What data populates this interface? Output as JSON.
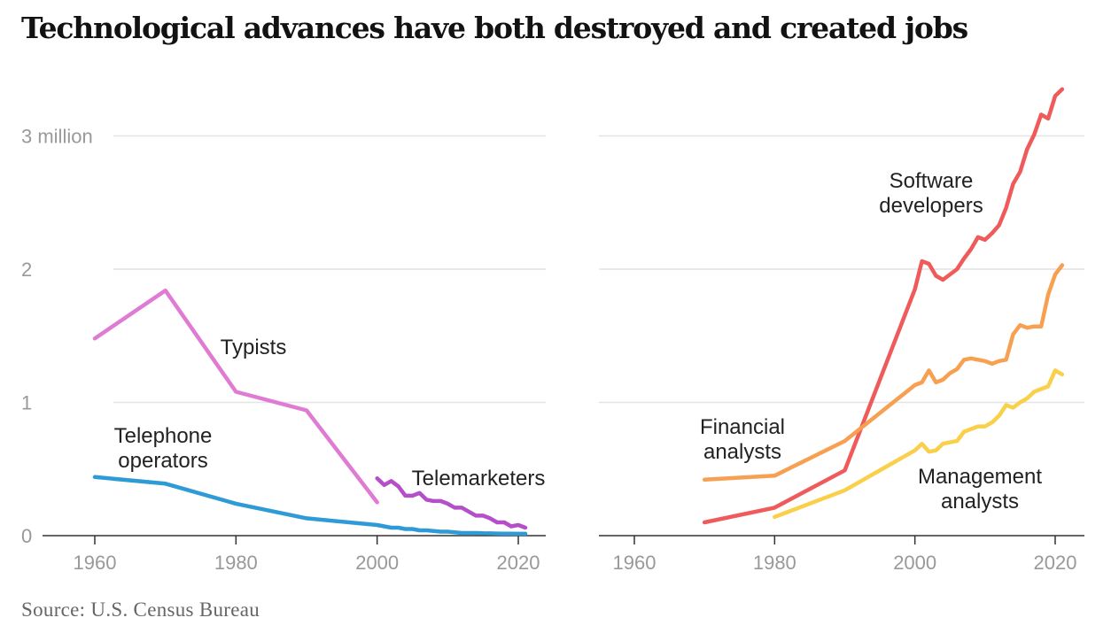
{
  "title": "Technological advances have both destroyed and created jobs",
  "source": "Source: U.S. Census Bureau",
  "colors": {
    "typists": "#e07bd4",
    "telephone_operators": "#2f9bd6",
    "telemarketers": "#b54ec9",
    "software_developers": "#ef5b5b",
    "financial_analysts": "#f7a052",
    "management_analysts": "#fad04a",
    "gridline": "#e4e4e4",
    "axis": "#333333",
    "tick_label": "#999999"
  },
  "chart_data": [
    {
      "type": "line",
      "y_tick_labels": [
        "0",
        "1",
        "2",
        "3 million"
      ],
      "y_ticks": [
        0,
        1,
        2,
        3
      ],
      "x_ticks": [
        1960,
        1980,
        2000,
        2020
      ],
      "xlim": [
        1953,
        2024
      ],
      "ylim": [
        0,
        3.4
      ],
      "grid": true,
      "series": [
        {
          "key": "typists",
          "name": "Typists",
          "label_lines": [
            "Typists"
          ],
          "x": [
            1960,
            1970,
            1980,
            1990,
            2000
          ],
          "y": [
            1.48,
            1.84,
            1.08,
            0.94,
            0.25
          ]
        },
        {
          "key": "telephone_operators",
          "name": "Telephone operators",
          "label_lines": [
            "Telephone",
            "operators"
          ],
          "x": [
            1960,
            1970,
            1980,
            1990,
            2000,
            2001,
            2002,
            2003,
            2004,
            2005,
            2006,
            2007,
            2008,
            2009,
            2010,
            2011,
            2012,
            2013,
            2014,
            2015,
            2016,
            2017,
            2018,
            2019,
            2020,
            2021
          ],
          "y": [
            0.44,
            0.39,
            0.24,
            0.13,
            0.08,
            0.07,
            0.06,
            0.06,
            0.05,
            0.05,
            0.04,
            0.04,
            0.035,
            0.03,
            0.03,
            0.025,
            0.02,
            0.02,
            0.02,
            0.018,
            0.017,
            0.016,
            0.015,
            0.015,
            0.014,
            0.014
          ]
        },
        {
          "key": "telemarketers",
          "name": "Telemarketers",
          "label_lines": [
            "Telemarketers"
          ],
          "x": [
            2000,
            2001,
            2002,
            2003,
            2004,
            2005,
            2006,
            2007,
            2008,
            2009,
            2010,
            2011,
            2012,
            2013,
            2014,
            2015,
            2016,
            2017,
            2018,
            2019,
            2020,
            2021
          ],
          "y": [
            0.43,
            0.38,
            0.41,
            0.37,
            0.3,
            0.3,
            0.32,
            0.27,
            0.26,
            0.26,
            0.24,
            0.21,
            0.21,
            0.18,
            0.15,
            0.15,
            0.13,
            0.1,
            0.1,
            0.07,
            0.08,
            0.06
          ]
        }
      ]
    },
    {
      "type": "line",
      "y_ticks": [
        0,
        1,
        2,
        3
      ],
      "x_ticks": [
        1960,
        1980,
        2000,
        2020
      ],
      "xlim": [
        1955,
        2024
      ],
      "ylim": [
        0,
        3.4
      ],
      "grid": true,
      "series": [
        {
          "key": "software_developers",
          "name": "Software developers",
          "label_lines": [
            "Software",
            "developers"
          ],
          "x": [
            1970,
            1980,
            1990,
            2000,
            2001,
            2002,
            2003,
            2004,
            2005,
            2006,
            2007,
            2008,
            2009,
            2010,
            2011,
            2012,
            2013,
            2014,
            2015,
            2016,
            2017,
            2018,
            2019,
            2020,
            2021
          ],
          "y": [
            0.1,
            0.21,
            0.49,
            1.85,
            2.06,
            2.04,
            1.95,
            1.92,
            1.96,
            2.0,
            2.08,
            2.15,
            2.24,
            2.22,
            2.27,
            2.33,
            2.46,
            2.64,
            2.73,
            2.9,
            3.01,
            3.16,
            3.13,
            3.3,
            3.35
          ]
        },
        {
          "key": "financial_analysts",
          "name": "Financial analysts",
          "label_lines": [
            "Financial",
            "analysts"
          ],
          "x": [
            1970,
            1980,
            1990,
            2000,
            2001,
            2002,
            2003,
            2004,
            2005,
            2006,
            2007,
            2008,
            2009,
            2010,
            2011,
            2012,
            2013,
            2014,
            2015,
            2016,
            2017,
            2018,
            2019,
            2020,
            2021
          ],
          "y": [
            0.42,
            0.45,
            0.71,
            1.13,
            1.15,
            1.24,
            1.15,
            1.17,
            1.22,
            1.25,
            1.32,
            1.33,
            1.32,
            1.31,
            1.29,
            1.31,
            1.32,
            1.51,
            1.58,
            1.56,
            1.57,
            1.57,
            1.81,
            1.96,
            2.03
          ]
        },
        {
          "key": "management_analysts",
          "name": "Management analysts",
          "label_lines": [
            "Management",
            "analysts"
          ],
          "x": [
            1980,
            1990,
            2000,
            2001,
            2002,
            2003,
            2004,
            2005,
            2006,
            2007,
            2008,
            2009,
            2010,
            2011,
            2012,
            2013,
            2014,
            2015,
            2016,
            2017,
            2018,
            2019,
            2020,
            2021
          ],
          "y": [
            0.14,
            0.34,
            0.64,
            0.69,
            0.63,
            0.64,
            0.69,
            0.7,
            0.71,
            0.78,
            0.8,
            0.82,
            0.82,
            0.85,
            0.9,
            0.98,
            0.96,
            1.0,
            1.03,
            1.08,
            1.1,
            1.12,
            1.24,
            1.21
          ]
        }
      ]
    }
  ]
}
